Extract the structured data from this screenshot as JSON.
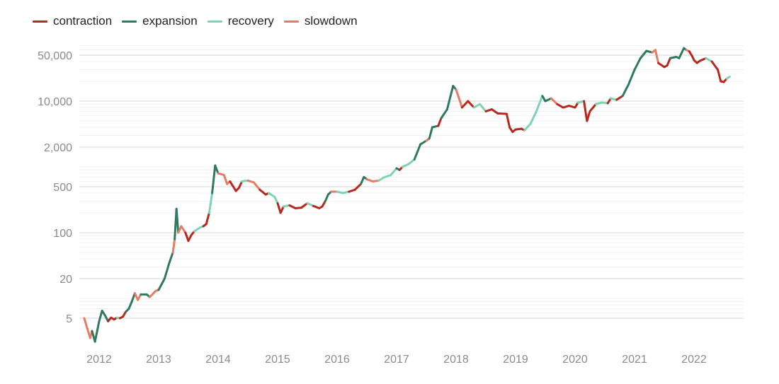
{
  "chart_data": {
    "type": "line",
    "title": "",
    "xlabel": "",
    "ylabel": "",
    "yscale": "log",
    "ylim": [
      2,
      70000
    ],
    "xlim": [
      2011.6,
      2022.75
    ],
    "grid": true,
    "legend_position": "top-left",
    "legend": [
      {
        "name": "contraction",
        "color": "#b8281f"
      },
      {
        "name": "expansion",
        "color": "#2f7a5c"
      },
      {
        "name": "recovery",
        "color": "#7dd3b2"
      },
      {
        "name": "slowdown",
        "color": "#e47c66"
      }
    ],
    "y_ticks": [
      {
        "value": 50000,
        "label": "50,000"
      },
      {
        "value": 10000,
        "label": "10,000"
      },
      {
        "value": 2000,
        "label": "2,000"
      },
      {
        "value": 500,
        "label": "500"
      },
      {
        "value": 100,
        "label": "100"
      },
      {
        "value": 20,
        "label": "20"
      },
      {
        "value": 5,
        "label": "5"
      }
    ],
    "x_ticks": [
      {
        "value": 2012,
        "label": "2012"
      },
      {
        "value": 2013,
        "label": "2013"
      },
      {
        "value": 2014,
        "label": "2014"
      },
      {
        "value": 2015,
        "label": "2015"
      },
      {
        "value": 2016,
        "label": "2016"
      },
      {
        "value": 2017,
        "label": "2017"
      },
      {
        "value": 2018,
        "label": "2018"
      },
      {
        "value": 2019,
        "label": "2019"
      },
      {
        "value": 2020,
        "label": "2020"
      },
      {
        "value": 2021,
        "label": "2021"
      },
      {
        "value": 2022,
        "label": "2022"
      }
    ],
    "points": [
      [
        2011.75,
        5,
        "slowdown"
      ],
      [
        2011.8,
        3.5,
        "slowdown"
      ],
      [
        2011.85,
        2.5,
        "slowdown"
      ],
      [
        2011.88,
        3.2,
        "expansion"
      ],
      [
        2011.93,
        2.2,
        "expansion"
      ],
      [
        2012.0,
        4.5,
        "expansion"
      ],
      [
        2012.05,
        6.5,
        "expansion"
      ],
      [
        2012.1,
        5.5,
        "expansion"
      ],
      [
        2012.15,
        4.5,
        "contraction"
      ],
      [
        2012.2,
        5.1,
        "contraction"
      ],
      [
        2012.25,
        4.8,
        "contraction"
      ],
      [
        2012.3,
        5.1,
        "recovery"
      ],
      [
        2012.35,
        5.0,
        "contraction"
      ],
      [
        2012.4,
        5.3,
        "contraction"
      ],
      [
        2012.45,
        6.3,
        "expansion"
      ],
      [
        2012.5,
        7,
        "expansion"
      ],
      [
        2012.55,
        9,
        "expansion"
      ],
      [
        2012.6,
        12,
        "slowdown"
      ],
      [
        2012.65,
        9.5,
        "slowdown"
      ],
      [
        2012.7,
        11.5,
        "expansion"
      ],
      [
        2012.8,
        11.5,
        "expansion"
      ],
      [
        2012.85,
        10.5,
        "slowdown"
      ],
      [
        2012.95,
        13,
        "slowdown"
      ],
      [
        2013.0,
        13.5,
        "expansion"
      ],
      [
        2013.1,
        20,
        "expansion"
      ],
      [
        2013.18,
        35,
        "expansion"
      ],
      [
        2013.24,
        50,
        "slowdown"
      ],
      [
        2013.27,
        80,
        "expansion"
      ],
      [
        2013.3,
        230,
        "expansion"
      ],
      [
        2013.33,
        100,
        "slowdown"
      ],
      [
        2013.38,
        125,
        "slowdown"
      ],
      [
        2013.45,
        100,
        "contraction"
      ],
      [
        2013.5,
        75,
        "contraction"
      ],
      [
        2013.55,
        92,
        "contraction"
      ],
      [
        2013.6,
        105,
        "recovery"
      ],
      [
        2013.7,
        120,
        "recovery"
      ],
      [
        2013.75,
        125,
        "contraction"
      ],
      [
        2013.8,
        135,
        "contraction"
      ],
      [
        2013.85,
        200,
        "recovery"
      ],
      [
        2013.9,
        400,
        "expansion"
      ],
      [
        2013.95,
        1050,
        "expansion"
      ],
      [
        2014.0,
        800,
        "slowdown"
      ],
      [
        2014.1,
        750,
        "slowdown"
      ],
      [
        2014.15,
        550,
        "slowdown"
      ],
      [
        2014.2,
        600,
        "contraction"
      ],
      [
        2014.3,
        430,
        "contraction"
      ],
      [
        2014.35,
        480,
        "contraction"
      ],
      [
        2014.4,
        600,
        "recovery"
      ],
      [
        2014.5,
        620,
        "slowdown"
      ],
      [
        2014.6,
        580,
        "slowdown"
      ],
      [
        2014.7,
        450,
        "contraction"
      ],
      [
        2014.8,
        380,
        "contraction"
      ],
      [
        2014.85,
        400,
        "recovery"
      ],
      [
        2014.95,
        350,
        "recovery"
      ],
      [
        2015.0,
        280,
        "contraction"
      ],
      [
        2015.05,
        200,
        "contraction"
      ],
      [
        2015.1,
        250,
        "recovery"
      ],
      [
        2015.2,
        260,
        "contraction"
      ],
      [
        2015.3,
        235,
        "contraction"
      ],
      [
        2015.4,
        240,
        "contraction"
      ],
      [
        2015.5,
        280,
        "recovery"
      ],
      [
        2015.6,
        255,
        "contraction"
      ],
      [
        2015.7,
        235,
        "contraction"
      ],
      [
        2015.75,
        250,
        "contraction"
      ],
      [
        2015.8,
        300,
        "expansion"
      ],
      [
        2015.85,
        380,
        "expansion"
      ],
      [
        2015.9,
        420,
        "slowdown"
      ],
      [
        2016.0,
        420,
        "recovery"
      ],
      [
        2016.1,
        400,
        "recovery"
      ],
      [
        2016.2,
        420,
        "contraction"
      ],
      [
        2016.3,
        450,
        "contraction"
      ],
      [
        2016.4,
        550,
        "expansion"
      ],
      [
        2016.45,
        700,
        "expansion"
      ],
      [
        2016.5,
        650,
        "slowdown"
      ],
      [
        2016.6,
        600,
        "slowdown"
      ],
      [
        2016.7,
        620,
        "recovery"
      ],
      [
        2016.8,
        700,
        "recovery"
      ],
      [
        2016.9,
        750,
        "recovery"
      ],
      [
        2017.0,
        950,
        "expansion"
      ],
      [
        2017.05,
        900,
        "contraction"
      ],
      [
        2017.1,
        1000,
        "recovery"
      ],
      [
        2017.2,
        1100,
        "recovery"
      ],
      [
        2017.3,
        1300,
        "expansion"
      ],
      [
        2017.4,
        2200,
        "expansion"
      ],
      [
        2017.5,
        2500,
        "slowdown"
      ],
      [
        2017.55,
        2700,
        "expansion"
      ],
      [
        2017.6,
        4000,
        "expansion"
      ],
      [
        2017.7,
        4200,
        "contraction"
      ],
      [
        2017.75,
        5500,
        "expansion"
      ],
      [
        2017.85,
        7500,
        "expansion"
      ],
      [
        2017.95,
        17000,
        "expansion"
      ],
      [
        2018.0,
        15000,
        "slowdown"
      ],
      [
        2018.05,
        11000,
        "slowdown"
      ],
      [
        2018.1,
        8000,
        "contraction"
      ],
      [
        2018.2,
        10000,
        "contraction"
      ],
      [
        2018.3,
        8000,
        "recovery"
      ],
      [
        2018.4,
        9000,
        "recovery"
      ],
      [
        2018.5,
        7000,
        "contraction"
      ],
      [
        2018.6,
        7500,
        "contraction"
      ],
      [
        2018.7,
        6500,
        "contraction"
      ],
      [
        2018.85,
        6400,
        "contraction"
      ],
      [
        2018.9,
        4000,
        "contraction"
      ],
      [
        2018.95,
        3400,
        "contraction"
      ],
      [
        2019.0,
        3700,
        "contraction"
      ],
      [
        2019.1,
        3800,
        "contraction"
      ],
      [
        2019.15,
        3600,
        "recovery"
      ],
      [
        2019.25,
        4500,
        "recovery"
      ],
      [
        2019.35,
        7000,
        "recovery"
      ],
      [
        2019.45,
        12000,
        "expansion"
      ],
      [
        2019.5,
        10000,
        "expansion"
      ],
      [
        2019.6,
        11000,
        "slowdown"
      ],
      [
        2019.7,
        9000,
        "contraction"
      ],
      [
        2019.8,
        8000,
        "contraction"
      ],
      [
        2019.9,
        8500,
        "contraction"
      ],
      [
        2020.0,
        8000,
        "contraction"
      ],
      [
        2020.05,
        9500,
        "recovery"
      ],
      [
        2020.15,
        10000,
        "contraction"
      ],
      [
        2020.2,
        5000,
        "contraction"
      ],
      [
        2020.25,
        7000,
        "contraction"
      ],
      [
        2020.35,
        9000,
        "recovery"
      ],
      [
        2020.45,
        9500,
        "recovery"
      ],
      [
        2020.55,
        9300,
        "contraction"
      ],
      [
        2020.6,
        11000,
        "recovery"
      ],
      [
        2020.7,
        10500,
        "contraction"
      ],
      [
        2020.8,
        12000,
        "expansion"
      ],
      [
        2020.9,
        18000,
        "expansion"
      ],
      [
        2021.0,
        30000,
        "expansion"
      ],
      [
        2021.1,
        45000,
        "expansion"
      ],
      [
        2021.2,
        58000,
        "expansion"
      ],
      [
        2021.3,
        55000,
        "slowdown"
      ],
      [
        2021.35,
        60000,
        "slowdown"
      ],
      [
        2021.4,
        38000,
        "contraction"
      ],
      [
        2021.5,
        33000,
        "contraction"
      ],
      [
        2021.55,
        35000,
        "contraction"
      ],
      [
        2021.6,
        45000,
        "expansion"
      ],
      [
        2021.7,
        47000,
        "expansion"
      ],
      [
        2021.75,
        45000,
        "expansion"
      ],
      [
        2021.83,
        64000,
        "expansion"
      ],
      [
        2021.87,
        60000,
        "slowdown"
      ],
      [
        2021.92,
        57000,
        "contraction"
      ],
      [
        2021.97,
        48000,
        "contraction"
      ],
      [
        2022.0,
        42000,
        "contraction"
      ],
      [
        2022.05,
        38000,
        "contraction"
      ],
      [
        2022.1,
        41000,
        "contraction"
      ],
      [
        2022.2,
        45000,
        "recovery"
      ],
      [
        2022.3,
        40000,
        "contraction"
      ],
      [
        2022.4,
        30000,
        "contraction"
      ],
      [
        2022.45,
        20000,
        "contraction"
      ],
      [
        2022.5,
        19500,
        "contraction"
      ],
      [
        2022.55,
        22000,
        "recovery"
      ],
      [
        2022.6,
        23500,
        "recovery"
      ]
    ]
  }
}
